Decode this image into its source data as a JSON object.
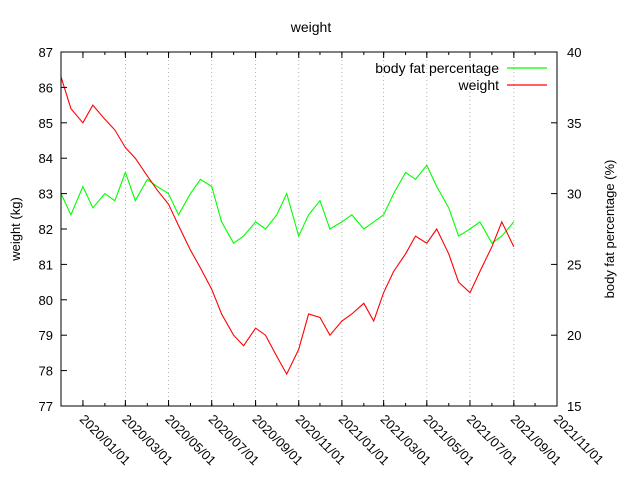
{
  "chart_data": {
    "type": "line",
    "title": "weight",
    "ylabel": "weight (kg)",
    "y2label": "body fat percentage (%)",
    "xlim": [
      "2019-12-01",
      "2021-11-01"
    ],
    "ylim": [
      77,
      87
    ],
    "y2lim": [
      15,
      40
    ],
    "x_ticks": [
      "2020/01/01",
      "2020/03/01",
      "2020/05/01",
      "2020/07/01",
      "2020/09/01",
      "2020/11/01",
      "2021/01/01",
      "2021/03/01",
      "2021/05/01",
      "2021/07/01",
      "2021/09/01",
      "2021/11/01"
    ],
    "y_ticks": [
      77,
      78,
      79,
      80,
      81,
      82,
      83,
      84,
      85,
      86,
      87
    ],
    "y2_ticks": [
      15,
      20,
      25,
      30,
      35,
      40
    ],
    "grid": "vertical-dotted",
    "legend_position": "top-right",
    "colors": {
      "weight": "#ff0000",
      "bodyfat": "#00ff00"
    },
    "series": [
      {
        "name": "weight",
        "axis": "left",
        "x": [
          "2019-12-01",
          "2019-12-15",
          "2020-01-01",
          "2020-01-15",
          "2020-02-01",
          "2020-02-15",
          "2020-03-01",
          "2020-03-15",
          "2020-04-01",
          "2020-04-15",
          "2020-05-01",
          "2020-05-15",
          "2020-06-01",
          "2020-06-15",
          "2020-07-01",
          "2020-07-15",
          "2020-08-01",
          "2020-08-15",
          "2020-09-01",
          "2020-09-15",
          "2020-10-01",
          "2020-10-15",
          "2020-11-01",
          "2020-11-15",
          "2020-12-01",
          "2020-12-15",
          "2021-01-01",
          "2021-01-15",
          "2021-02-01",
          "2021-02-15",
          "2021-03-01",
          "2021-03-15",
          "2021-04-01",
          "2021-04-15",
          "2021-05-01",
          "2021-05-15",
          "2021-06-01",
          "2021-06-15",
          "2021-07-01",
          "2021-07-15",
          "2021-08-01",
          "2021-08-15",
          "2021-09-01"
        ],
        "y": [
          86.3,
          85.4,
          85.0,
          85.5,
          85.1,
          84.8,
          84.3,
          84.0,
          83.5,
          83.1,
          82.7,
          82.1,
          81.4,
          80.9,
          80.3,
          79.6,
          79.0,
          78.7,
          79.2,
          79.0,
          78.4,
          77.9,
          78.6,
          79.6,
          79.5,
          79.0,
          79.4,
          79.6,
          79.9,
          79.4,
          80.2,
          80.8,
          81.3,
          81.8,
          81.6,
          82.0,
          81.3,
          80.5,
          80.2,
          80.8,
          81.5,
          82.2,
          81.5
        ]
      },
      {
        "name": "body fat percentage",
        "axis": "right",
        "x": [
          "2019-12-01",
          "2019-12-15",
          "2020-01-01",
          "2020-01-15",
          "2020-02-01",
          "2020-02-15",
          "2020-03-01",
          "2020-03-15",
          "2020-04-01",
          "2020-04-15",
          "2020-05-01",
          "2020-05-15",
          "2020-06-01",
          "2020-06-15",
          "2020-07-01",
          "2020-07-15",
          "2020-08-01",
          "2020-08-15",
          "2020-09-01",
          "2020-09-15",
          "2020-10-01",
          "2020-10-15",
          "2020-11-01",
          "2020-11-15",
          "2020-12-01",
          "2020-12-15",
          "2021-01-01",
          "2021-01-15",
          "2021-02-01",
          "2021-02-15",
          "2021-03-01",
          "2021-03-15",
          "2021-04-01",
          "2021-04-15",
          "2021-05-01",
          "2021-05-15",
          "2021-06-01",
          "2021-06-15",
          "2021-07-01",
          "2021-07-15",
          "2021-08-01",
          "2021-08-15",
          "2021-09-01"
        ],
        "y": [
          30.0,
          28.5,
          30.5,
          29.0,
          30.0,
          29.5,
          31.5,
          29.5,
          31.0,
          30.5,
          30.0,
          28.5,
          30.0,
          31.0,
          30.5,
          28.0,
          26.5,
          27.0,
          28.0,
          27.5,
          28.5,
          30.0,
          27.0,
          28.5,
          29.5,
          27.5,
          28.0,
          28.5,
          27.5,
          28.0,
          28.5,
          30.0,
          31.5,
          31.0,
          32.0,
          30.5,
          29.0,
          27.0,
          27.5,
          28.0,
          26.5,
          27.0,
          28.0
        ]
      }
    ]
  }
}
